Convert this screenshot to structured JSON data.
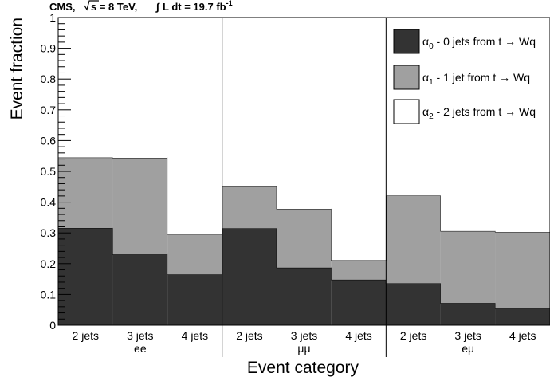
{
  "header": {
    "experiment": "CMS,",
    "energy_pre": "s",
    "energy_post": " = 8 TeV,",
    "lumi_int": "∫",
    "lumi_text": " L dt = 19.7 fb",
    "lumi_exp": "-1"
  },
  "chart_data": {
    "type": "bar",
    "stacked": true,
    "xlabel": "Event category",
    "ylabel": "Event fraction",
    "ylim": [
      0,
      1
    ],
    "yticks": [
      "0",
      "0.1",
      "0.2",
      "0.3",
      "0.4",
      "0.5",
      "0.6",
      "0.7",
      "0.8",
      "0.9",
      "1"
    ],
    "groups": [
      "ee",
      "μμ",
      "eμ"
    ],
    "categories": [
      "2 jets",
      "3 jets",
      "4 jets",
      "2 jets",
      "3 jets",
      "4 jets",
      "2 jets",
      "3 jets",
      "4 jets"
    ],
    "series": [
      {
        "name": "α0 - 0 jets from t → Wq",
        "symbol": "α",
        "sub": "0",
        "label": " - 0 jets from t → Wq",
        "color": "#333333",
        "values": [
          0.316,
          0.23,
          0.165,
          0.315,
          0.187,
          0.148,
          0.136,
          0.072,
          0.054
        ]
      },
      {
        "name": "α1 - 1 jet from t → Wq",
        "symbol": "α",
        "sub": "1",
        "label": " - 1 jet from t → Wq",
        "color": "#a0a0a0",
        "values": [
          0.229,
          0.314,
          0.131,
          0.138,
          0.191,
          0.063,
          0.285,
          0.234,
          0.249
        ]
      },
      {
        "name": "α2 - 2 jets from t → Wq",
        "symbol": "α",
        "sub": "2",
        "label": " - 2 jets from t → Wq",
        "color": "#ffffff",
        "values": [
          0.455,
          0.456,
          0.704,
          0.547,
          0.622,
          0.789,
          0.579,
          0.694,
          0.697
        ]
      }
    ],
    "legend": "top-right",
    "grid": false
  }
}
